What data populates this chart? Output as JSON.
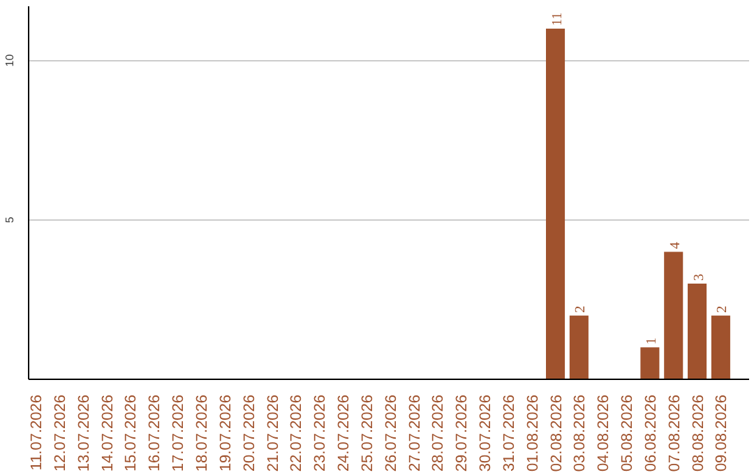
{
  "chart_data": {
    "type": "bar",
    "categories": [
      "11.07.2026",
      "12.07.2026",
      "13.07.2026",
      "14.07.2026",
      "15.07.2026",
      "16.07.2026",
      "17.07.2026",
      "18.07.2026",
      "19.07.2026",
      "20.07.2026",
      "21.07.2026",
      "22.07.2026",
      "23.07.2026",
      "24.07.2026",
      "25.07.2026",
      "26.07.2026",
      "27.07.2026",
      "28.07.2026",
      "29.07.2026",
      "30.07.2026",
      "31.07.2026",
      "01.08.2026",
      "02.08.2026",
      "03.08.2026",
      "04.08.2026",
      "05.08.2026",
      "06.08.2026",
      "07.08.2026",
      "08.08.2026",
      "09.08.2026"
    ],
    "values": [
      0,
      0,
      0,
      0,
      0,
      0,
      0,
      0,
      0,
      0,
      0,
      0,
      0,
      0,
      0,
      0,
      0,
      0,
      0,
      0,
      0,
      0,
      11,
      2,
      0,
      0,
      1,
      4,
      3,
      2
    ],
    "value_labels": [
      null,
      null,
      null,
      null,
      null,
      null,
      null,
      null,
      null,
      null,
      null,
      null,
      null,
      null,
      null,
      null,
      null,
      null,
      null,
      null,
      null,
      null,
      "11",
      "2",
      null,
      null,
      "1",
      "4",
      "3",
      "2"
    ],
    "color": "#a0522d",
    "ylim": [
      0,
      11.7
    ],
    "yticks": [
      5,
      10
    ],
    "grid": "y"
  }
}
